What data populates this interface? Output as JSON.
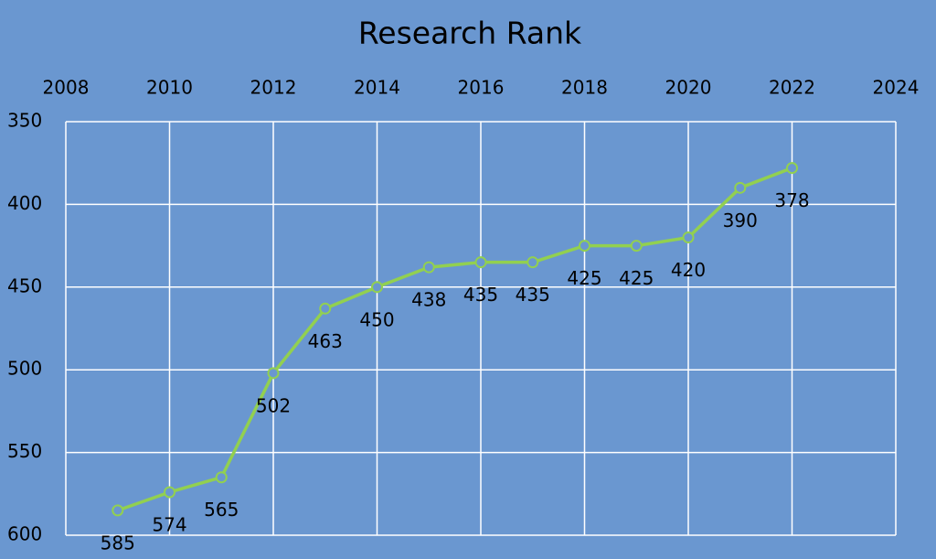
{
  "chart_data": {
    "type": "line",
    "title": "Research Rank",
    "x": [
      2009,
      2010,
      2011,
      2012,
      2013,
      2014,
      2015,
      2016,
      2017,
      2018,
      2019,
      2020,
      2021,
      2022
    ],
    "series": [
      {
        "name": "Research Rank",
        "color": "#92d050",
        "values": [
          585,
          574,
          565,
          502,
          463,
          450,
          438,
          435,
          435,
          425,
          425,
          420,
          390,
          378
        ]
      }
    ],
    "xlim": [
      2008,
      2024
    ],
    "xticks": [
      2008,
      2010,
      2012,
      2014,
      2016,
      2018,
      2020,
      2022,
      2024
    ],
    "ylim": [
      350,
      600
    ],
    "yticks": [
      350,
      400,
      450,
      500,
      550,
      600
    ],
    "y_reversed": true,
    "x_axis_position": "top",
    "grid": true,
    "background": "#6a97d0"
  }
}
